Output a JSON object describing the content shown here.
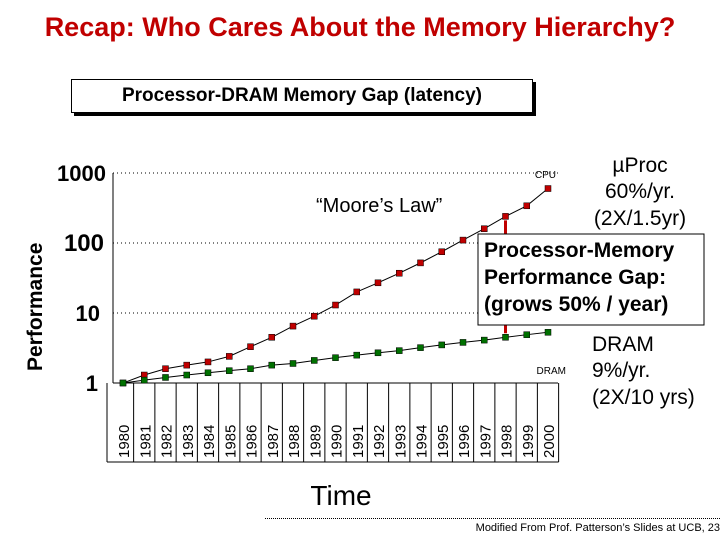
{
  "slide": {
    "title": "Recap: Who Cares About the Memory Hierarchy?",
    "subtitle": "Processor-DRAM Memory Gap (latency)",
    "footer": "Modified From Prof. Patterson’s Slides at UCB,  23"
  },
  "chart_data": {
    "type": "line",
    "ylabel": "Performance",
    "xlabel": "Time",
    "yscale": "log",
    "ylim": [
      1,
      1000
    ],
    "y_ticks": [
      "1",
      "10",
      "100",
      "1000"
    ],
    "x": [
      "1980",
      "1981",
      "1982",
      "1983",
      "1984",
      "1985",
      "1986",
      "1987",
      "1988",
      "1989",
      "1990",
      "1991",
      "1992",
      "1993",
      "1994",
      "1995",
      "1996",
      "1997",
      "1998",
      "1999",
      "2000"
    ],
    "series": [
      {
        "name": "CPU",
        "color": "#c00000",
        "values": [
          1,
          1.3,
          1.6,
          1.8,
          2.0,
          2.4,
          3.3,
          4.5,
          6.5,
          9.0,
          13,
          20,
          27,
          37,
          52,
          75,
          110,
          160,
          240,
          340,
          600
        ]
      },
      {
        "name": "DRAM",
        "color": "#007000",
        "values": [
          1,
          1.1,
          1.2,
          1.3,
          1.4,
          1.5,
          1.6,
          1.8,
          1.9,
          2.1,
          2.3,
          2.5,
          2.7,
          2.9,
          3.2,
          3.5,
          3.8,
          4.1,
          4.5,
          4.9,
          5.3
        ]
      }
    ],
    "annotations": {
      "moores_law": "“Moore’s Law”",
      "cpu_rate": [
        "µProc",
        "60%/yr.",
        "(2X/1.5yr)"
      ],
      "gap": [
        "Processor-Memory",
        "Performance Gap:",
        "(grows 50% / year)"
      ],
      "dram_rate": [
        "DRAM",
        "9%/yr.",
        "(2X/10 yrs)"
      ]
    }
  }
}
